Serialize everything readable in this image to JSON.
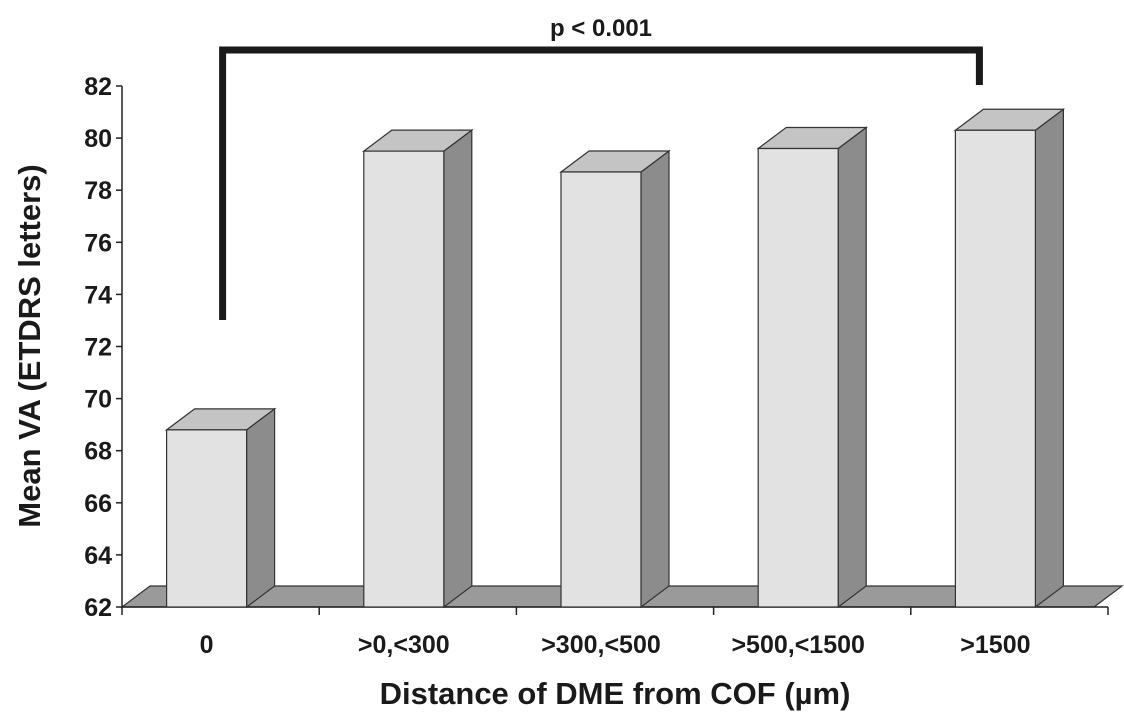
{
  "chart_data": {
    "type": "bar",
    "style": "3d",
    "categories": [
      "0",
      ">0,<300",
      ">300,<500",
      ">500,<1500",
      ">1500"
    ],
    "values": [
      68.8,
      79.5,
      78.7,
      79.6,
      80.3
    ],
    "xlabel": "Distance of DME from COF (µm)",
    "ylabel": "Mean VA (ETDRS letters)",
    "ylim": [
      62,
      82
    ],
    "yticks": [
      "62",
      "64",
      "66",
      "68",
      "70",
      "72",
      "74",
      "76",
      "78",
      "80",
      "82"
    ],
    "grid": false,
    "annotation": {
      "text": "p < 0.001",
      "from_category": "0",
      "to_category": ">1500"
    },
    "colors": {
      "bar_front": "#e2e2e2",
      "bar_top": "#c4c4c4",
      "bar_side": "#8c8c8c",
      "floor": "#9a9a9a",
      "bracket": "#1a1a1a"
    }
  }
}
